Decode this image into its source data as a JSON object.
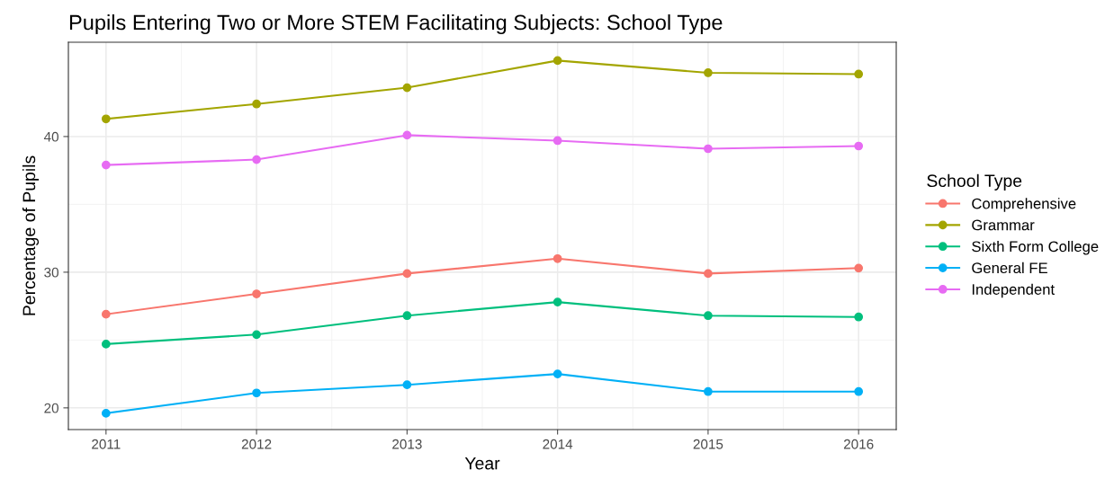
{
  "chart_data": {
    "type": "line",
    "title": "Pupils Entering Two or More STEM Facilitating Subjects: School Type",
    "xlabel": "Year",
    "ylabel": "Percentage of Pupils",
    "legend_title": "School Type",
    "x": [
      2011,
      2012,
      2013,
      2014,
      2015,
      2016
    ],
    "series": [
      {
        "name": "Comprehensive",
        "color": "#f8766d",
        "values": [
          26.9,
          28.4,
          29.9,
          31.0,
          29.9,
          30.3
        ]
      },
      {
        "name": "Grammar",
        "color": "#a3a500",
        "values": [
          41.3,
          42.4,
          43.6,
          45.6,
          44.7,
          44.6
        ]
      },
      {
        "name": "Sixth Form College",
        "color": "#00bf7d",
        "values": [
          24.7,
          25.4,
          26.8,
          27.8,
          26.8,
          26.7
        ]
      },
      {
        "name": "General FE",
        "color": "#00b0f6",
        "values": [
          19.6,
          21.1,
          21.7,
          22.5,
          21.2,
          21.2
        ]
      },
      {
        "name": "Independent",
        "color": "#e76bf3",
        "values": [
          37.9,
          38.3,
          40.1,
          39.7,
          39.1,
          39.3
        ]
      }
    ],
    "xlim": [
      2010.75,
      2016.25
    ],
    "xticks": [
      2011,
      2012,
      2013,
      2014,
      2015,
      2016
    ],
    "ylim": [
      18.4,
      46.95
    ],
    "yticks": [
      20,
      30,
      40
    ],
    "grid": true,
    "legend": "right",
    "marker": "circle",
    "line_style": "solid"
  }
}
